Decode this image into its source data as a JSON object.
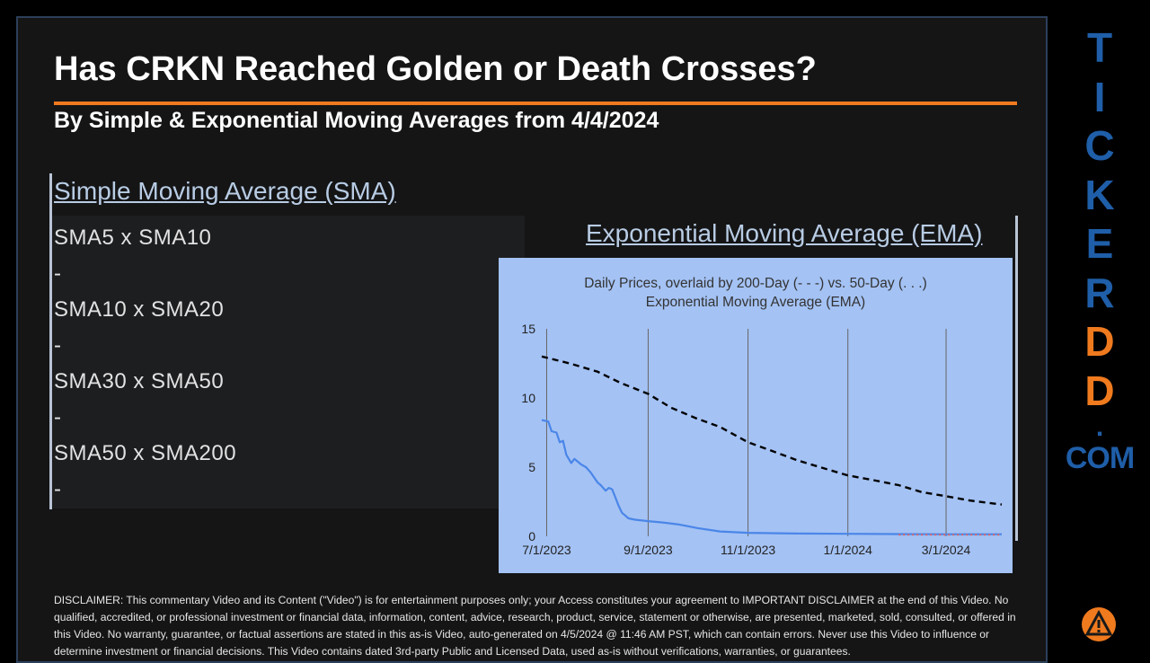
{
  "header": {
    "title": "Has CRKN Reached Golden or Death Crosses?",
    "subtitle": "By Simple & Exponential Moving Averages from 4/4/2024"
  },
  "sma": {
    "heading": "Simple Moving Average (SMA)",
    "lines": [
      "SMA5 x SMA10",
      "-",
      "SMA10 x SMA20",
      "-",
      "SMA30 x SMA50",
      "-",
      "SMA50 x SMA200",
      "-"
    ]
  },
  "ema": {
    "heading": "Exponential Moving Average (EMA)"
  },
  "chart_data": {
    "type": "line",
    "title": "Daily Prices, overlaid by 200-Day (- - -) vs. 50-Day (. . .)",
    "subtitle": "Exponential Moving Average (EMA)",
    "xlabel": "",
    "ylabel": "",
    "x_ticks": [
      "7/1/2023",
      "9/1/2023",
      "11/1/2023",
      "1/1/2024",
      "3/1/2024"
    ],
    "y_ticks": [
      0,
      5,
      10,
      15
    ],
    "ylim": [
      0,
      15
    ],
    "xlim": [
      "6/28/2023",
      "4/4/2024"
    ],
    "grid": "vertical lines at x ticks",
    "colors": {
      "price": "#4a86e8",
      "ema200": "#000000",
      "ema50": "#e06666",
      "background": "#a4c2f4",
      "grid": "#666666"
    },
    "series": [
      {
        "style": "solid",
        "points": [
          [
            "6/28/2023",
            8.4
          ],
          [
            "7/2/2023",
            8.3
          ],
          [
            "7/4/2023",
            7.6
          ],
          [
            "7/7/2023",
            7.5
          ],
          [
            "7/9/2023",
            6.8
          ],
          [
            "7/11/2023",
            6.9
          ],
          [
            "7/13/2023",
            5.9
          ],
          [
            "7/16/2023",
            5.3
          ],
          [
            "7/18/2023",
            5.6
          ],
          [
            "7/22/2023",
            5.2
          ],
          [
            "7/25/2023",
            5.0
          ],
          [
            "7/28/2023",
            4.6
          ],
          [
            "8/1/2023",
            3.9
          ],
          [
            "8/3/2023",
            3.7
          ],
          [
            "8/6/2023",
            3.3
          ],
          [
            "8/8/2023",
            3.5
          ],
          [
            "8/10/2023",
            3.4
          ],
          [
            "8/12/2023",
            2.8
          ],
          [
            "8/14/2023",
            2.2
          ],
          [
            "8/16/2023",
            1.7
          ],
          [
            "8/20/2023",
            1.3
          ],
          [
            "8/24/2023",
            1.2
          ],
          [
            "9/1/2023",
            1.1
          ],
          [
            "9/10/2023",
            1.0
          ],
          [
            "9/20/2023",
            0.85
          ],
          [
            "10/1/2023",
            0.6
          ],
          [
            "10/15/2023",
            0.35
          ],
          [
            "11/1/2023",
            0.25
          ],
          [
            "12/1/2023",
            0.2
          ],
          [
            "1/1/2024",
            0.18
          ],
          [
            "2/1/2024",
            0.16
          ],
          [
            "3/1/2024",
            0.15
          ],
          [
            "4/4/2024",
            0.15
          ]
        ]
      },
      {
        "style": "dashed",
        "points": [
          [
            "6/28/2023",
            13.0
          ],
          [
            "7/15/2023",
            12.5
          ],
          [
            "8/1/2023",
            11.9
          ],
          [
            "8/15/2023",
            11.1
          ],
          [
            "9/1/2023",
            10.3
          ],
          [
            "9/15/2023",
            9.3
          ],
          [
            "10/1/2023",
            8.5
          ],
          [
            "10/15/2023",
            7.9
          ],
          [
            "11/1/2023",
            6.8
          ],
          [
            "11/15/2023",
            6.2
          ],
          [
            "12/1/2023",
            5.5
          ],
          [
            "12/15/2023",
            5.0
          ],
          [
            "1/1/2024",
            4.4
          ],
          [
            "1/15/2024",
            4.1
          ],
          [
            "2/1/2024",
            3.7
          ],
          [
            "2/15/2024",
            3.2
          ],
          [
            "3/1/2024",
            2.9
          ],
          [
            "3/15/2024",
            2.6
          ],
          [
            "4/4/2024",
            2.3
          ]
        ]
      },
      {
        "style": "dotted",
        "points": [
          [
            "2/1/2024",
            0.12
          ],
          [
            "3/1/2024",
            0.12
          ],
          [
            "4/4/2024",
            0.12
          ]
        ]
      }
    ]
  },
  "ticker": {
    "letters": [
      "T",
      "I",
      "C",
      "K",
      "E",
      "R",
      "D",
      "D"
    ],
    "dot": ".",
    "com": "COM",
    "colors": {
      "blue": "#1f5ea8",
      "orange": "#f07a1e"
    }
  },
  "disclaimer": "DISCLAIMER: This commentary Video and its Content (\"Video\") is for entertainment purposes only; your Access constitutes your agreement to IMPORTANT DISCLAIMER at the end of this Video. No qualified, accredited, or professional investment or financial data, information, content, advice, research, product, service, statement or otherwise, are presented, marketed, sold, consulted, or offered in this Video. No warranty, guarantee, or factual assertions are stated in this as-is Video, auto-generated on 4/5/2024 @ 11:46 AM PST, which can contain errors. Never use this Video to influence or determine investment or financial decisions. This Video contains dated 3rd-party Public and Licensed Data, used as-is without verifications, warranties, or guarantees."
}
